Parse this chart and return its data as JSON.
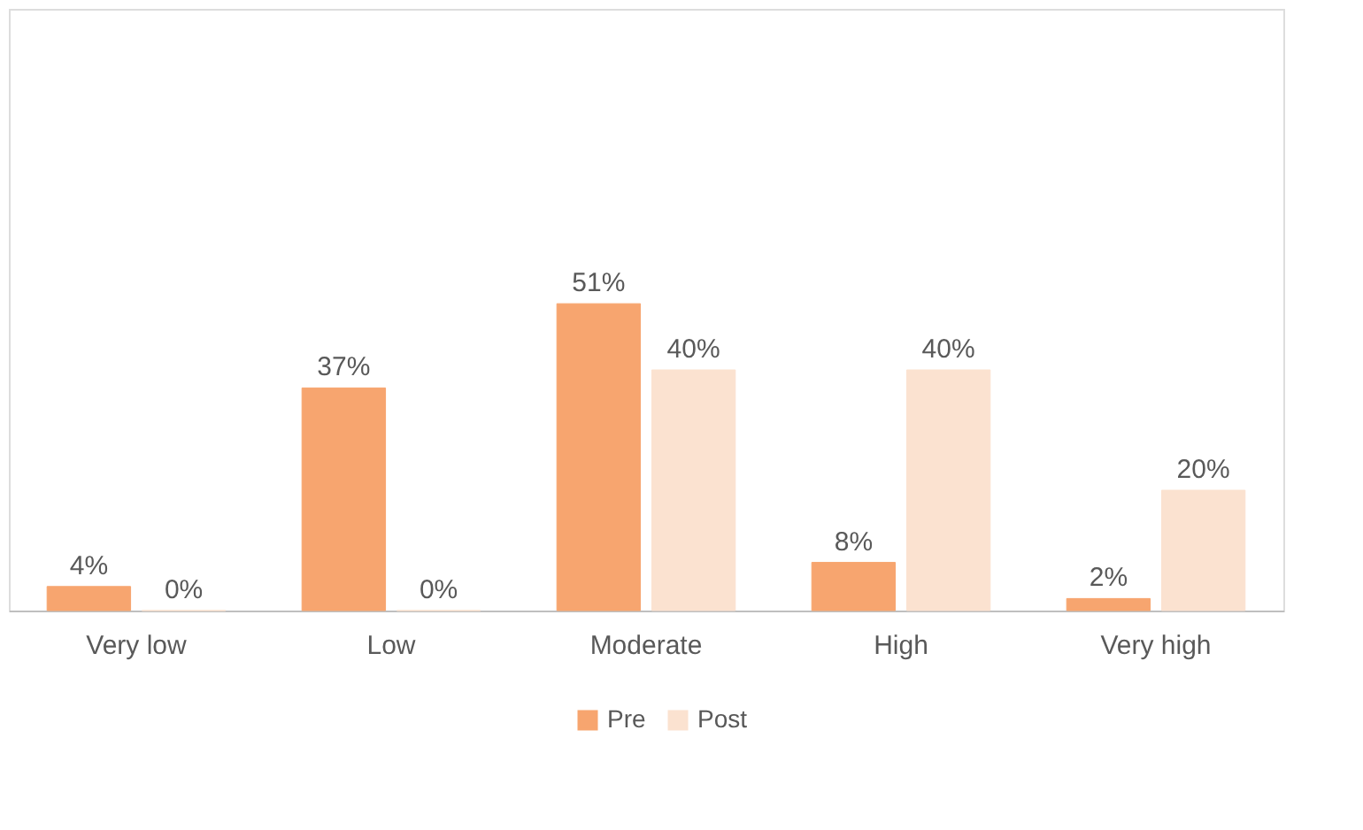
{
  "chart_data": {
    "type": "bar",
    "categories": [
      "Very low",
      "Low",
      "Moderate",
      "High",
      "Very high"
    ],
    "series": [
      {
        "name": "Pre",
        "color": "#f7a56f",
        "values": [
          4,
          37,
          51,
          8,
          2
        ],
        "value_labels": [
          "4%",
          "37%",
          "51%",
          "8%",
          "2%"
        ]
      },
      {
        "name": "Post",
        "color": "#fbe2d0",
        "values": [
          0,
          0,
          40,
          40,
          20
        ],
        "value_labels": [
          "0%",
          "0%",
          "40%",
          "40%",
          "20%"
        ]
      }
    ],
    "ylim": [
      0,
      100
    ],
    "tick_labels": "x",
    "grid": false,
    "legend": "bottom"
  }
}
